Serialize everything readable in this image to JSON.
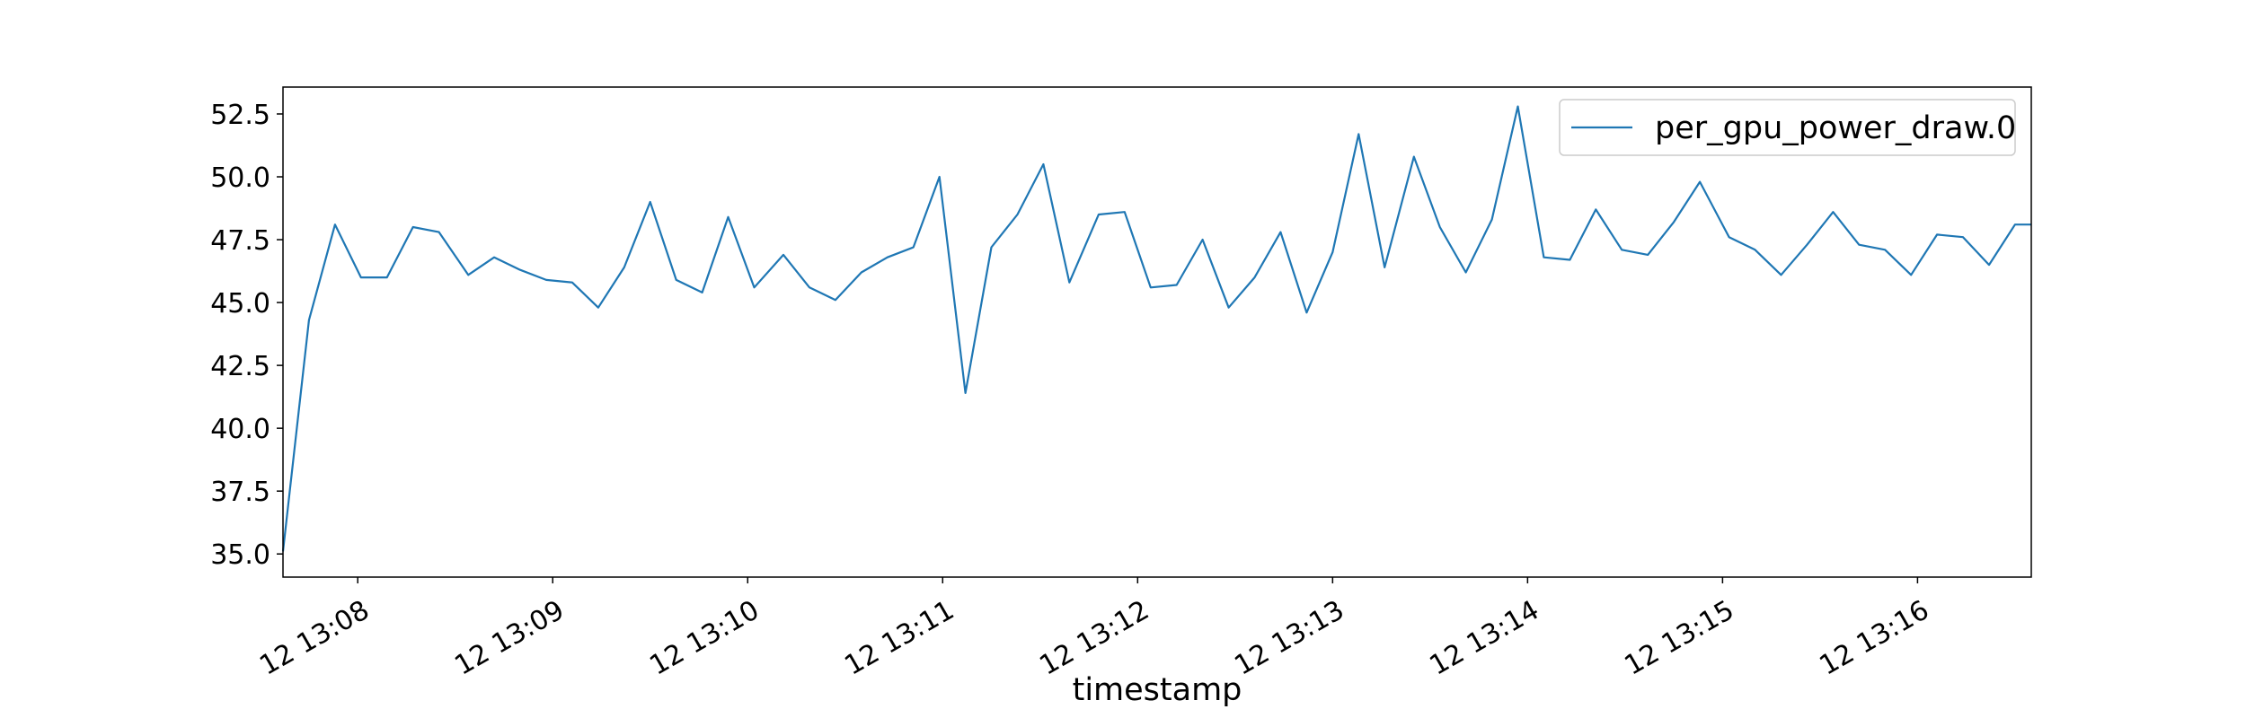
{
  "chart_data": {
    "type": "line",
    "title": "",
    "xlabel": "timestamp",
    "ylabel": "",
    "ylim": [
      34.08,
      53.57
    ],
    "xlim": [
      "12 13:07:37",
      "12 13:16:35"
    ],
    "grid": false,
    "legend_position": "top-right",
    "line_color": "#1f77b4",
    "x_tick_labels": [
      "12 13:08",
      "12 13:09",
      "12 13:10",
      "12 13:11",
      "12 13:12",
      "12 13:13",
      "12 13:14",
      "12 13:15",
      "12 13:16"
    ],
    "y_ticks": [
      35.0,
      37.5,
      40.0,
      42.5,
      45.0,
      47.5,
      50.0,
      52.5
    ],
    "y_tick_labels": [
      "35.0",
      "37.5",
      "40.0",
      "42.5",
      "45.0",
      "47.5",
      "50.0",
      "52.5"
    ],
    "series": [
      {
        "name": "per_gpu_power_draw.0",
        "x": [
          "12 13:07:37",
          "12 13:07:45",
          "12 13:07:53",
          "12 13:08:01",
          "12 13:08:09",
          "12 13:08:17",
          "12 13:08:25",
          "12 13:08:34",
          "12 13:08:42",
          "12 13:08:50",
          "12 13:08:58",
          "12 13:09:06",
          "12 13:09:14",
          "12 13:09:22",
          "12 13:09:30",
          "12 13:09:38",
          "12 13:09:46",
          "12 13:09:54",
          "12 13:10:02",
          "12 13:10:11",
          "12 13:10:19",
          "12 13:10:27",
          "12 13:10:35",
          "12 13:10:43",
          "12 13:10:51",
          "12 13:10:59",
          "12 13:11:07",
          "12 13:11:15",
          "12 13:11:23",
          "12 13:11:31",
          "12 13:11:39",
          "12 13:11:48",
          "12 13:11:56",
          "12 13:12:04",
          "12 13:12:12",
          "12 13:12:20",
          "12 13:12:28",
          "12 13:12:36",
          "12 13:12:44",
          "12 13:12:52",
          "12 13:13:00",
          "12 13:13:08",
          "12 13:13:16",
          "12 13:13:25",
          "12 13:13:33",
          "12 13:13:41",
          "12 13:13:49",
          "12 13:13:57",
          "12 13:14:05",
          "12 13:14:13",
          "12 13:14:21",
          "12 13:14:29",
          "12 13:14:37",
          "12 13:14:45",
          "12 13:14:53",
          "12 13:15:02",
          "12 13:15:10",
          "12 13:15:18",
          "12 13:15:26",
          "12 13:15:34",
          "12 13:15:42",
          "12 13:15:50",
          "12 13:15:58",
          "12 13:16:06",
          "12 13:16:14",
          "12 13:16:22",
          "12 13:16:30",
          "12 13:16:35"
        ],
        "values": [
          35.1,
          44.3,
          48.1,
          46.0,
          46.0,
          48.0,
          47.8,
          46.1,
          46.8,
          46.3,
          45.9,
          45.8,
          44.8,
          46.4,
          49.0,
          45.9,
          45.4,
          48.4,
          45.6,
          46.9,
          45.6,
          45.1,
          46.2,
          46.8,
          47.2,
          50.0,
          41.4,
          47.2,
          48.5,
          50.5,
          45.8,
          48.5,
          48.6,
          45.6,
          45.7,
          47.5,
          44.8,
          46.0,
          47.8,
          44.6,
          47.0,
          51.7,
          46.4,
          50.8,
          48.0,
          46.2,
          48.3,
          52.8,
          46.8,
          46.7,
          48.7,
          47.1,
          46.9,
          48.2,
          49.8,
          47.6,
          47.1,
          46.1,
          47.3,
          48.6,
          47.3,
          47.1,
          46.1,
          47.7,
          47.6,
          46.5,
          48.1,
          48.1
        ]
      }
    ]
  }
}
